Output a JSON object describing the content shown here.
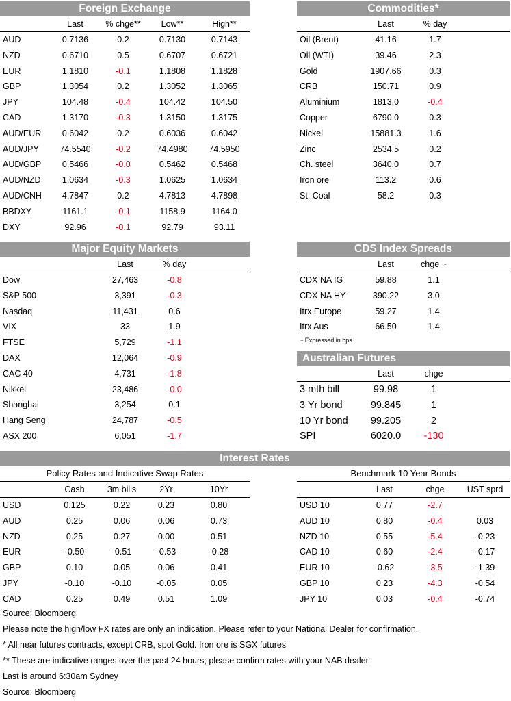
{
  "fx": {
    "title": "Foreign Exchange",
    "headers": [
      "",
      "Last",
      "% chge**",
      "Low**",
      "High**"
    ],
    "rows": [
      [
        "AUD",
        "0.7136",
        "0.2",
        "0.7130",
        "0.7143"
      ],
      [
        "NZD",
        "0.6710",
        "0.5",
        "0.6707",
        "0.6721"
      ],
      [
        "EUR",
        "1.1810",
        "-0.1",
        "1.1808",
        "1.1828"
      ],
      [
        "GBP",
        "1.3054",
        "0.2",
        "1.3052",
        "1.3065"
      ],
      [
        "JPY",
        "104.48",
        "-0.4",
        "104.42",
        "104.50"
      ],
      [
        "CAD",
        "1.3170",
        "-0.3",
        "1.3150",
        "1.3175"
      ],
      [
        "AUD/EUR",
        "0.6042",
        "0.2",
        "0.6036",
        "0.6042"
      ],
      [
        "AUD/JPY",
        "74.5540",
        "-0.2",
        "74.4980",
        "74.5950"
      ],
      [
        "AUD/GBP",
        "0.5466",
        "-0.0",
        "0.5462",
        "0.5468"
      ],
      [
        "AUD/NZD",
        "1.0634",
        "-0.3",
        "1.0625",
        "1.0634"
      ],
      [
        "AUD/CNH",
        "4.7847",
        "0.2",
        "4.7813",
        "4.7898"
      ],
      [
        "BBDXY",
        "1161.1",
        "-0.1",
        "1158.9",
        "1164.0"
      ],
      [
        "DXY",
        "92.96",
        "-0.1",
        "92.79",
        "93.11"
      ]
    ]
  },
  "commodities": {
    "title": "Commodities*",
    "headers": [
      "",
      "Last",
      "% day"
    ],
    "rows": [
      [
        "Oil (Brent)",
        "41.16",
        "1.7"
      ],
      [
        "Oil (WTI)",
        "39.46",
        "2.3"
      ],
      [
        "Gold",
        "1907.66",
        "0.3"
      ],
      [
        "CRB",
        "150.71",
        "0.9"
      ],
      [
        "Aluminium",
        "1813.0",
        "-0.4"
      ],
      [
        "Copper",
        "6790.0",
        "0.3"
      ],
      [
        "Nickel",
        "15881.3",
        "1.6"
      ],
      [
        "Zinc",
        "2534.5",
        "0.2"
      ],
      [
        "Ch. steel",
        "3640.0",
        "0.7"
      ],
      [
        "Iron ore",
        "113.2",
        "0.6"
      ],
      [
        "St. Coal",
        "58.2",
        "0.3"
      ]
    ]
  },
  "equity": {
    "title": "Major Equity Markets",
    "headers": [
      "",
      "Last",
      "% day"
    ],
    "rows": [
      [
        "Dow",
        "27,463",
        "-0.8"
      ],
      [
        "S&P 500",
        "3,391",
        "-0.3"
      ],
      [
        "Nasdaq",
        "11,431",
        "0.6"
      ],
      [
        "VIX",
        "33",
        "1.9"
      ],
      [
        "FTSE",
        "5,729",
        "-1.1"
      ],
      [
        "DAX",
        "12,064",
        "-0.9"
      ],
      [
        "CAC 40",
        "4,731",
        "-1.8"
      ],
      [
        "Nikkei",
        "23,486",
        "-0.0"
      ],
      [
        "Shanghai",
        "3,254",
        "0.1"
      ],
      [
        "Hang Seng",
        "24,787",
        "-0.5"
      ],
      [
        "ASX 200",
        "6,051",
        "-1.7"
      ]
    ]
  },
  "cds": {
    "title": "CDS Index Spreads",
    "headers": [
      "",
      "Last",
      "chge ~"
    ],
    "rows": [
      [
        "CDX NA IG",
        "59.88",
        "1.1"
      ],
      [
        "CDX NA HY",
        "390.22",
        "3.0"
      ],
      [
        "Itrx Europe",
        "59.27",
        "1.4"
      ],
      [
        "Itrx Aus",
        "66.50",
        "1.4"
      ]
    ],
    "note": "~ Expressed in bps"
  },
  "futures": {
    "title": "Australian Futures",
    "headers": [
      "",
      "Last",
      "chge"
    ],
    "rows": [
      [
        "3 mth bill",
        "99.98",
        "1"
      ],
      [
        "3 Yr bond",
        "99.845",
        "1"
      ],
      [
        "10 Yr bond",
        "99.205",
        "2"
      ],
      [
        "SPI",
        "6020.0",
        "-130"
      ]
    ]
  },
  "rates": {
    "title": "Interest Rates",
    "policy": {
      "subtitle": "Policy Rates and Indicative Swap Rates",
      "headers": [
        "",
        "Cash",
        "3m bills",
        "2Yr",
        "10Yr"
      ],
      "rows": [
        [
          "USD",
          "0.125",
          "0.22",
          "0.23",
          "0.80"
        ],
        [
          "AUD",
          "0.25",
          "0.06",
          "0.06",
          "0.73"
        ],
        [
          "NZD",
          "0.25",
          "0.27",
          "0.00",
          "0.51"
        ],
        [
          "EUR",
          "-0.50",
          "-0.51",
          "-0.53",
          "-0.28"
        ],
        [
          "GBP",
          "0.10",
          "0.05",
          "0.06",
          "0.41"
        ],
        [
          "JPY",
          "-0.10",
          "-0.10",
          "-0.05",
          "0.05"
        ],
        [
          "CAD",
          "0.25",
          "0.49",
          "0.51",
          "1.09"
        ]
      ]
    },
    "bonds": {
      "subtitle": "Benchmark 10 Year Bonds",
      "headers": [
        "",
        "Last",
        "chge",
        "UST sprd"
      ],
      "rows": [
        [
          "USD 10",
          "0.77",
          "-2.7",
          ""
        ],
        [
          "AUD 10",
          "0.80",
          "-0.4",
          "0.03"
        ],
        [
          "NZD 10",
          "0.55",
          "-5.4",
          "-0.23"
        ],
        [
          "CAD 10",
          "0.60",
          "-2.4",
          "-0.17"
        ],
        [
          "EUR 10",
          "-0.62",
          "-3.5",
          "-1.39"
        ],
        [
          "GBP 10",
          "0.23",
          "-4.3",
          "-0.54"
        ],
        [
          "JPY 10",
          "0.03",
          "-0.4",
          "-0.74"
        ]
      ]
    }
  },
  "footer": [
    "Source: Bloomberg",
    "Please note the high/low FX rates are only an indication. Please refer to your National Dealer for confirmation.",
    "* All near futures contracts, except CRB, spot Gold.  Iron ore is SGX futures",
    "** These are indicative ranges over the past 24 hours; please confirm rates with your NAB dealer",
    "Last is around 6:30am Sydney",
    "Source: Bloomberg"
  ]
}
